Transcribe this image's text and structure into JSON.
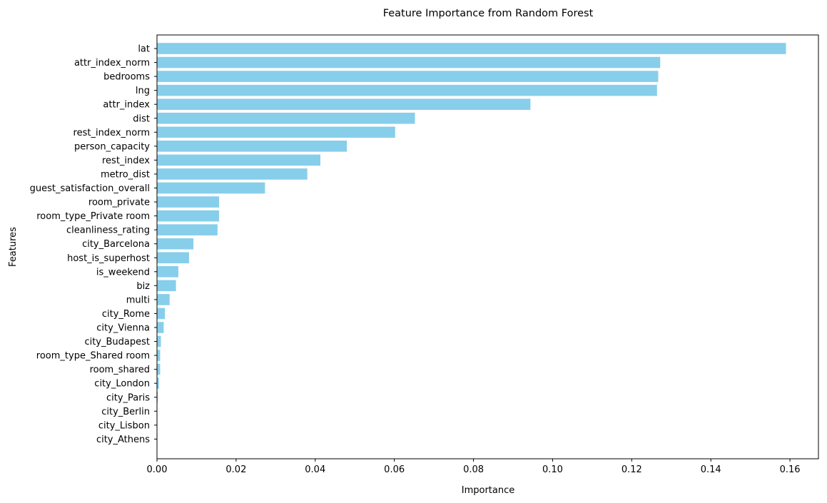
{
  "chart_data": {
    "type": "bar",
    "orientation": "horizontal",
    "title": "Feature Importance from Random Forest",
    "xlabel": "Importance",
    "ylabel": "Features",
    "xlim": [
      0,
      0.1672
    ],
    "xticks": [
      "0.00",
      "0.02",
      "0.04",
      "0.06",
      "0.08",
      "0.10",
      "0.12",
      "0.14",
      "0.16"
    ],
    "bar_color": "#87ceeb",
    "grid": false,
    "categories": [
      "lat",
      "attr_index_norm",
      "bedrooms",
      "lng",
      "attr_index",
      "dist",
      "rest_index_norm",
      "person_capacity",
      "rest_index",
      "metro_dist",
      "guest_satisfaction_overall",
      "room_private",
      "room_type_Private room",
      "cleanliness_rating",
      "city_Barcelona",
      "host_is_superhost",
      "is_weekend",
      "biz",
      "multi",
      "city_Rome",
      "city_Vienna",
      "city_Budapest",
      "room_type_Shared room",
      "room_shared",
      "city_London",
      "city_Paris",
      "city_Berlin",
      "city_Lisbon",
      "city_Athens"
    ],
    "values": [
      0.159,
      0.1272,
      0.1267,
      0.1264,
      0.0944,
      0.0652,
      0.0602,
      0.048,
      0.0413,
      0.038,
      0.0273,
      0.0157,
      0.0157,
      0.0153,
      0.0092,
      0.0081,
      0.0054,
      0.0048,
      0.0032,
      0.002,
      0.0017,
      0.001,
      0.0008,
      0.0008,
      0.0005,
      0.0002,
      0.0001,
      0.0001,
      0.0001
    ]
  }
}
